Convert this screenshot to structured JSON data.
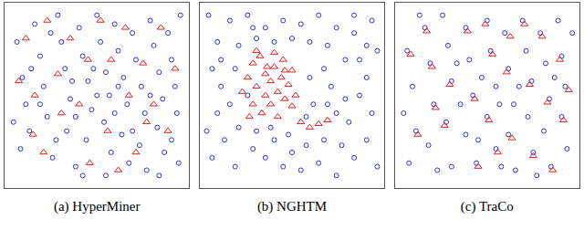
{
  "chart_data": [
    {
      "type": "scatter",
      "title": "(a) HyperMiner",
      "xlim": [
        -2,
        102
      ],
      "ylim": [
        -2,
        102
      ],
      "tick_labels": false,
      "series": [
        {
          "color": "#2f2fd8",
          "marker": "circle-open",
          "x": [
            5,
            8,
            10,
            12,
            7,
            15,
            18,
            20,
            22,
            25,
            28,
            30,
            32,
            35,
            33,
            38,
            40,
            42,
            45,
            47,
            44,
            50,
            52,
            55,
            57,
            54,
            58,
            60,
            62,
            65,
            67,
            64,
            68,
            70,
            72,
            75,
            77,
            74,
            78,
            80,
            82,
            85,
            87,
            84,
            88,
            90,
            92,
            94,
            95,
            92,
            96,
            18,
            27,
            48,
            36,
            60,
            70,
            80,
            13,
            24,
            42,
            55,
            85,
            3,
            97,
            50,
            38,
            62
          ],
          "y": [
            80,
            60,
            45,
            30,
            20,
            90,
            72,
            55,
            38,
            15,
            95,
            80,
            65,
            48,
            30,
            10,
            88,
            72,
            58,
            42,
            25,
            95,
            80,
            63,
            50,
            35,
            18,
            90,
            75,
            60,
            45,
            28,
            12,
            85,
            70,
            55,
            40,
            22,
            8,
            92,
            78,
            63,
            48,
            32,
            18,
            85,
            70,
            55,
            40,
            25,
            12,
            45,
            25,
            65,
            58,
            40,
            30,
            50,
            65,
            85,
            5,
            5,
            5,
            35,
            95,
            50,
            38,
            55
          ]
        },
        {
          "color": "#e02020",
          "marker": "triangle-up-open",
          "x": [
            10,
            6,
            14,
            22,
            28,
            20,
            35,
            40,
            46,
            52,
            58,
            56,
            66,
            68,
            72,
            76,
            82,
            86,
            90,
            94,
            30,
            62,
            78,
            45,
            15
          ],
          "y": [
            82,
            58,
            28,
            92,
            62,
            18,
            82,
            45,
            12,
            92,
            70,
            30,
            88,
            50,
            18,
            68,
            45,
            88,
            30,
            65,
            40,
            8,
            35,
            70,
            50
          ]
        }
      ]
    },
    {
      "type": "scatter",
      "title": "(b) NGHTM",
      "xlim": [
        -2,
        102
      ],
      "ylim": [
        -2,
        102
      ],
      "tick_labels": false,
      "series": [
        {
          "color": "#2f2fd8",
          "marker": "circle-open",
          "x": [
            15,
            25,
            35,
            45,
            55,
            65,
            75,
            85,
            92,
            8,
            5,
            10,
            8,
            12,
            5,
            18,
            28,
            35,
            45,
            55,
            65,
            75,
            85,
            92,
            95,
            88,
            92,
            80,
            70,
            60,
            50,
            40,
            30,
            20,
            18,
            15,
            20,
            30,
            38,
            48,
            58,
            68,
            78,
            82,
            80,
            72,
            68,
            60,
            62,
            58,
            40,
            25,
            85,
            95,
            3,
            98,
            98,
            2,
            50,
            75,
            88,
            28,
            10,
            70
          ],
          "y": [
            92,
            95,
            88,
            92,
            90,
            95,
            88,
            85,
            78,
            80,
            65,
            55,
            40,
            25,
            15,
            10,
            20,
            15,
            10,
            8,
            12,
            5,
            15,
            25,
            40,
            50,
            60,
            70,
            78,
            80,
            82,
            80,
            82,
            78,
            65,
            45,
            32,
            30,
            32,
            28,
            22,
            25,
            22,
            35,
            48,
            55,
            65,
            60,
            45,
            38,
            25,
            50,
            95,
            92,
            95,
            75,
            10,
            30,
            18,
            40,
            70,
            88,
            70,
            45
          ]
        },
        {
          "color": "#e02020",
          "marker": "triangle-up-open",
          "x": [
            25,
            28,
            30,
            32,
            35,
            35,
            38,
            40,
            38,
            42,
            44,
            45,
            46,
            48,
            50,
            33,
            28,
            42,
            52,
            22,
            30,
            40,
            50,
            55,
            60,
            65,
            70,
            26,
            36,
            46
          ],
          "y": [
            60,
            68,
            55,
            72,
            62,
            50,
            58,
            66,
            45,
            52,
            60,
            70,
            48,
            56,
            64,
            40,
            45,
            38,
            50,
            52,
            75,
            74,
            44,
            35,
            32,
            34,
            36,
            38,
            66,
            64
          ]
        }
      ]
    },
    {
      "type": "scatter",
      "title": "(c) TraCo",
      "xlim": [
        -2,
        102
      ],
      "ylim": [
        -2,
        102
      ],
      "tick_labels": false,
      "series": [
        {
          "color": "#2f2fd8",
          "marker": "circle-open",
          "x": [
            5,
            8,
            10,
            6,
            15,
            18,
            20,
            17,
            25,
            28,
            30,
            27,
            30,
            38,
            40,
            42,
            38,
            44,
            50,
            52,
            55,
            50,
            55,
            60,
            62,
            65,
            62,
            66,
            70,
            72,
            75,
            73,
            76,
            80,
            83,
            85,
            82,
            86,
            90,
            92,
            94,
            92,
            95,
            12,
            35,
            47,
            58,
            68,
            88,
            22,
            98,
            3,
            45,
            78,
            33,
            57
          ],
          "y": [
            75,
            55,
            30,
            12,
            88,
            68,
            45,
            22,
            95,
            78,
            58,
            35,
            10,
            88,
            70,
            50,
            28,
            12,
            92,
            75,
            55,
            38,
            20,
            85,
            65,
            45,
            28,
            8,
            92,
            75,
            58,
            38,
            18,
            85,
            68,
            48,
            30,
            10,
            92,
            72,
            55,
            38,
            20,
            95,
            45,
            60,
            10,
            55,
            60,
            8,
            85,
            40,
            25,
            5,
            68,
            45
          ]
        },
        {
          "color": "#e02020",
          "marker": "triangle-up-open",
          "x": [
            7,
            16,
            21,
            29,
            39,
            43,
            51,
            53,
            61,
            64,
            71,
            74,
            81,
            84,
            91,
            93,
            11,
            26,
            45,
            56,
            76,
            96,
            19,
            49,
            63,
            87
          ],
          "y": [
            73,
            86,
            43,
            56,
            86,
            48,
            36,
            73,
            63,
            26,
            90,
            56,
            83,
            46,
            70,
            36,
            28,
            33,
            10,
            18,
            16,
            53,
            66,
            90,
            83,
            8
          ]
        }
      ]
    }
  ]
}
